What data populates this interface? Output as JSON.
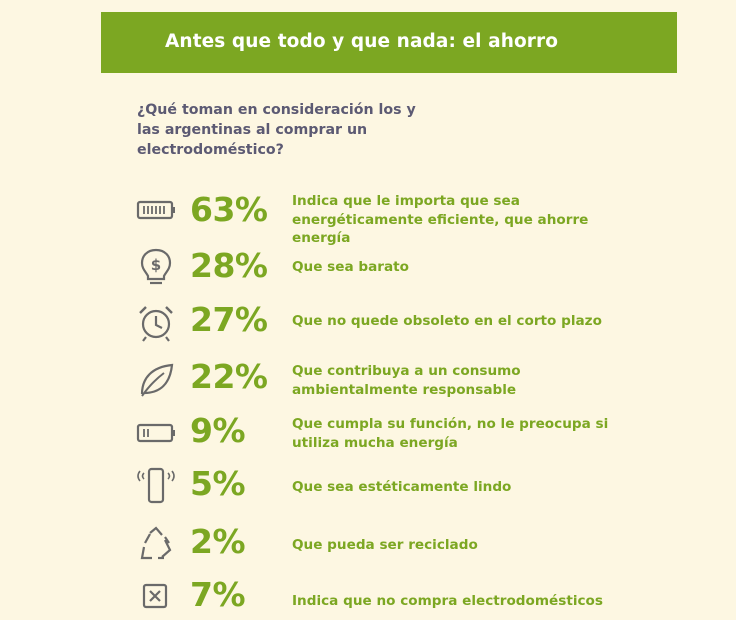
{
  "banner": {
    "title": "Antes que todo y que nada: el ahorro"
  },
  "question": "¿Qué toman en consideración los y las argentinas al comprar un electrodoméstico?",
  "colors": {
    "accent": "#7ca722",
    "background": "#fdf7e2",
    "question_text": "#5c5a73"
  },
  "chart_data": {
    "type": "table",
    "title": "Antes que todo y que nada: el ahorro",
    "question": "¿Qué toman en consideración los y las argentinas al comprar un electrodoméstico?",
    "rows": [
      {
        "icon": "battery-full-icon",
        "percent": "63%",
        "value": 63,
        "label": "Indica que le importa que sea energéticamente eficiente, que ahorre energía"
      },
      {
        "icon": "lightbulb-dollar-icon",
        "percent": "28%",
        "value": 28,
        "label": "Que sea barato"
      },
      {
        "icon": "alarm-clock-icon",
        "percent": "27%",
        "value": 27,
        "label": "Que no quede obsoleto en el corto plazo"
      },
      {
        "icon": "leaf-icon",
        "percent": "22%",
        "value": 22,
        "label": "Que contribuya a un consumo ambientalmente responsable"
      },
      {
        "icon": "battery-low-icon",
        "percent": "9%",
        "value": 9,
        "label": "Que cumpla su función, no le preocupa si utiliza mucha energía"
      },
      {
        "icon": "smartphone-vibrate-icon",
        "percent": "5%",
        "value": 5,
        "label": "Que sea estéticamente lindo"
      },
      {
        "icon": "recycle-icon",
        "percent": "2%",
        "value": 2,
        "label": "Que pueda ser reciclado"
      },
      {
        "icon": "x-box-icon",
        "percent": "7%",
        "value": 7,
        "label": "Indica que no compra electrodomésticos"
      }
    ]
  }
}
